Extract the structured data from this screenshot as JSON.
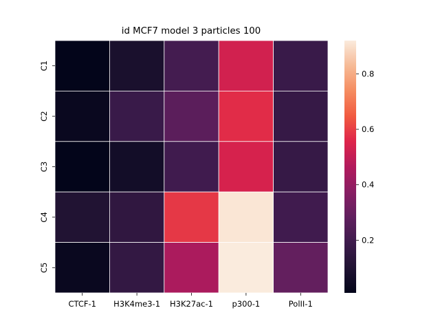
{
  "chart_data": {
    "type": "heatmap",
    "title": "id MCF7 model 3 particles 100",
    "xlabel": "",
    "ylabel": "",
    "x_categories": [
      "CTCF-1",
      "H3K4me3-1",
      "H3K27ac-1",
      "p300-1",
      "PolII-1"
    ],
    "y_categories": [
      "C1",
      "C2",
      "C3",
      "C4",
      "C5"
    ],
    "values": [
      [
        0.01,
        0.08,
        0.21,
        0.53,
        0.18
      ],
      [
        0.03,
        0.18,
        0.27,
        0.57,
        0.17
      ],
      [
        0.01,
        0.06,
        0.2,
        0.54,
        0.17
      ],
      [
        0.1,
        0.15,
        0.59,
        0.91,
        0.2
      ],
      [
        0.03,
        0.16,
        0.45,
        0.92,
        0.29
      ]
    ],
    "vmin": 0.01,
    "vmax": 0.92,
    "colormap": "rocket",
    "colorbar_ticks": [
      0.2,
      0.4,
      0.6,
      0.8
    ],
    "colorbar_tick_labels": [
      "0.2",
      "0.4",
      "0.6",
      "0.8"
    ],
    "cell_line_color": "#ffffff"
  }
}
